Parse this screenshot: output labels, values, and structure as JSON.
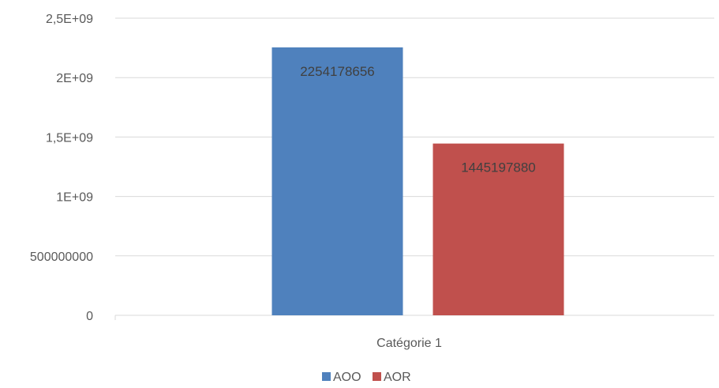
{
  "chart_data": {
    "type": "bar",
    "categories": [
      "Catégorie 1"
    ],
    "series": [
      {
        "name": "AOO",
        "values": [
          2254178656
        ],
        "value_label": "2254178656",
        "color": "#4F81BD"
      },
      {
        "name": "AOR",
        "values": [
          1445197880
        ],
        "value_label": "1445197880",
        "color": "#C0504D"
      }
    ],
    "ylim": [
      0,
      2500000000
    ],
    "yticks": [
      {
        "value": 0,
        "label": "0"
      },
      {
        "value": 500000000,
        "label": "500000000"
      },
      {
        "value": 1000000000,
        "label": "1E+09"
      },
      {
        "value": 1500000000,
        "label": "1,5E+09"
      },
      {
        "value": 2000000000,
        "label": "2E+09"
      },
      {
        "value": 2500000000,
        "label": "2,5E+09"
      }
    ],
    "grid": true,
    "legend_position": "bottom",
    "gridline_color": "#D9D9D9"
  }
}
